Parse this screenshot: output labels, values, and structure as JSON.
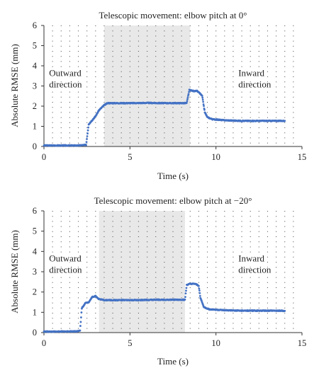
{
  "chart_data": [
    {
      "type": "scatter",
      "title": "Telescopic movement: elbow pitch at 0°",
      "xlabel": "Time (s)",
      "ylabel": "Absolute RMSE (mm)",
      "xlim": [
        0,
        15
      ],
      "ylim": [
        0,
        6
      ],
      "xticks": [
        "0",
        "5",
        "10",
        "15"
      ],
      "yticks": [
        "0",
        "1",
        "2",
        "3",
        "4",
        "5",
        "6"
      ],
      "grid": "dotted",
      "shaded_region": {
        "x_start": 3.5,
        "x_end": 8.5
      },
      "annotations": [
        {
          "text": "Outward\ndirection",
          "x": 0.3,
          "y": 3.5
        },
        {
          "text": "Inward\ndirection",
          "x": 11.3,
          "y": 3.5
        }
      ],
      "series": [
        {
          "color": "#4472c4",
          "points": [
            [
              0.0,
              0.05
            ],
            [
              1.0,
              0.05
            ],
            [
              2.0,
              0.05
            ],
            [
              2.45,
              0.08
            ],
            [
              2.6,
              1.1
            ],
            [
              2.8,
              1.3
            ],
            [
              3.0,
              1.5
            ],
            [
              3.2,
              1.8
            ],
            [
              3.5,
              2.05
            ],
            [
              3.7,
              2.15
            ],
            [
              4.0,
              2.15
            ],
            [
              5.0,
              2.15
            ],
            [
              6.0,
              2.16
            ],
            [
              7.0,
              2.15
            ],
            [
              8.0,
              2.15
            ],
            [
              8.3,
              2.15
            ],
            [
              8.45,
              2.8
            ],
            [
              8.7,
              2.75
            ],
            [
              8.9,
              2.75
            ],
            [
              9.05,
              2.65
            ],
            [
              9.2,
              2.5
            ],
            [
              9.35,
              1.7
            ],
            [
              9.5,
              1.45
            ],
            [
              9.8,
              1.35
            ],
            [
              10.5,
              1.3
            ],
            [
              11.5,
              1.27
            ],
            [
              12.5,
              1.27
            ],
            [
              13.5,
              1.27
            ],
            [
              14.0,
              1.27
            ]
          ]
        }
      ]
    },
    {
      "type": "scatter",
      "title": "Telescopic movement: elbow pitch at −20°",
      "xlabel": "Time (s)",
      "ylabel": "Absolute RMSE (mm)",
      "xlim": [
        0,
        15
      ],
      "ylim": [
        0,
        6
      ],
      "xticks": [
        "0",
        "5",
        "10",
        "15"
      ],
      "yticks": [
        "0",
        "1",
        "2",
        "3",
        "4",
        "5",
        "6"
      ],
      "grid": "dotted",
      "shaded_region": {
        "x_start": 3.2,
        "x_end": 8.2
      },
      "annotations": [
        {
          "text": "Outward\ndirection",
          "x": 0.3,
          "y": 3.5
        },
        {
          "text": "Inward\ndirection",
          "x": 11.3,
          "y": 3.5
        }
      ],
      "series": [
        {
          "color": "#4472c4",
          "points": [
            [
              0.0,
              0.05
            ],
            [
              1.0,
              0.05
            ],
            [
              2.0,
              0.07
            ],
            [
              2.1,
              0.1
            ],
            [
              2.2,
              1.2
            ],
            [
              2.4,
              1.45
            ],
            [
              2.6,
              1.5
            ],
            [
              2.8,
              1.75
            ],
            [
              3.0,
              1.8
            ],
            [
              3.2,
              1.65
            ],
            [
              3.5,
              1.6
            ],
            [
              4.5,
              1.6
            ],
            [
              5.5,
              1.6
            ],
            [
              6.5,
              1.62
            ],
            [
              7.5,
              1.62
            ],
            [
              8.2,
              1.62
            ],
            [
              8.3,
              2.35
            ],
            [
              8.5,
              2.4
            ],
            [
              8.8,
              2.4
            ],
            [
              9.0,
              2.3
            ],
            [
              9.1,
              1.7
            ],
            [
              9.3,
              1.25
            ],
            [
              9.6,
              1.15
            ],
            [
              10.5,
              1.1
            ],
            [
              11.5,
              1.08
            ],
            [
              12.5,
              1.08
            ],
            [
              13.5,
              1.08
            ],
            [
              14.0,
              1.07
            ]
          ]
        }
      ]
    }
  ]
}
